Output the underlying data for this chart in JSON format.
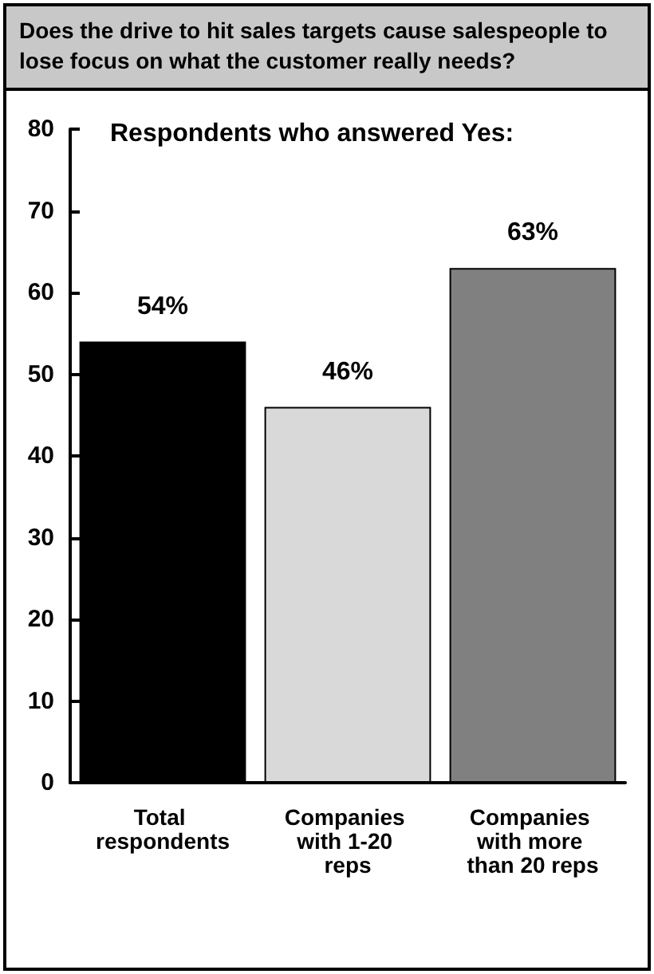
{
  "chart_data": {
    "type": "bar",
    "title": "Does the drive to hit sales targets cause salespeople to lose focus on what the customer really needs?",
    "subtitle": "Respondents who answered Yes:",
    "categories": [
      "Total respondents",
      "Companies with 1-20 reps",
      "Companies with more than 20 reps"
    ],
    "values": [
      54,
      46,
      63
    ],
    "value_labels": [
      "54%",
      "46%",
      "63%"
    ],
    "colors": [
      "#000000",
      "#d9d9d9",
      "#808080"
    ],
    "ylim": [
      0,
      80
    ],
    "yticks": [
      0,
      10,
      20,
      30,
      40,
      50,
      60,
      70,
      80
    ],
    "grid": false
  }
}
